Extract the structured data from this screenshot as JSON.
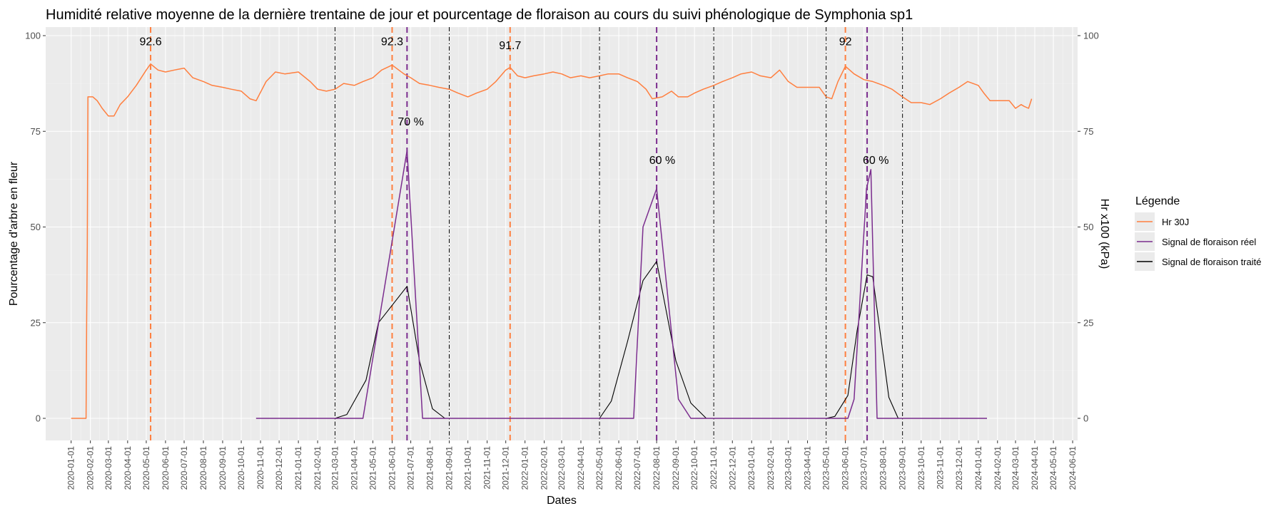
{
  "chart_data": {
    "type": "line",
    "title": "Humidité relative moyenne de la dernière trentaine de jour et pourcentage de floraison au cours du suivi phénologique de Symphonia sp1",
    "xlabel": "Dates",
    "ylabel_left": "Pourcentage d'arbre en fleur",
    "ylabel_right": "Hr x100 (kPa)",
    "ylim": [
      0,
      100
    ],
    "yticks": [
      0,
      25,
      50,
      75,
      100
    ],
    "x_range": [
      "2019-11-21",
      "2024-06-09"
    ],
    "x_ticks": [
      "2020-01-01",
      "2020-02-01",
      "2020-03-01",
      "2020-04-01",
      "2020-05-01",
      "2020-06-01",
      "2020-07-01",
      "2020-08-01",
      "2020-09-01",
      "2020-10-01",
      "2020-11-01",
      "2020-12-01",
      "2021-01-01",
      "2021-02-01",
      "2021-03-01",
      "2021-04-01",
      "2021-05-01",
      "2021-06-01",
      "2021-07-01",
      "2021-08-01",
      "2021-09-01",
      "2021-10-01",
      "2021-11-01",
      "2021-12-01",
      "2022-01-01",
      "2022-02-01",
      "2022-03-01",
      "2022-04-01",
      "2022-05-01",
      "2022-06-01",
      "2022-07-01",
      "2022-08-01",
      "2022-09-01",
      "2022-10-01",
      "2022-11-01",
      "2022-12-01",
      "2023-01-01",
      "2023-02-01",
      "2023-03-01",
      "2023-04-01",
      "2023-05-01",
      "2023-06-01",
      "2023-07-01",
      "2023-08-01",
      "2023-09-01",
      "2023-10-01",
      "2023-11-01",
      "2023-12-01",
      "2024-01-01",
      "2024-02-01",
      "2024-03-01",
      "2024-04-01",
      "2024-05-01",
      "2024-06-01"
    ],
    "legend": {
      "title": "Légende",
      "position": "right",
      "entries": [
        {
          "label": "Hr 30J",
          "color": "#ff7f3f"
        },
        {
          "label": "Signal de floraison réel",
          "color": "#7b2d8e"
        },
        {
          "label": "Signal de floraison traité",
          "color": "#000000"
        }
      ]
    },
    "series": [
      {
        "name": "Hr 30J",
        "color": "#ff7f3f",
        "points": [
          [
            "2020-01-01",
            0
          ],
          [
            "2020-01-25",
            0
          ],
          [
            "2020-01-26",
            25
          ],
          [
            "2020-01-27",
            45
          ],
          [
            "2020-01-28",
            84
          ],
          [
            "2020-02-05",
            84
          ],
          [
            "2020-02-12",
            83
          ],
          [
            "2020-02-20",
            81
          ],
          [
            "2020-03-01",
            79
          ],
          [
            "2020-03-10",
            79
          ],
          [
            "2020-03-20",
            82
          ],
          [
            "2020-04-01",
            84
          ],
          [
            "2020-04-15",
            87
          ],
          [
            "2020-05-01",
            91
          ],
          [
            "2020-05-08",
            92.6
          ],
          [
            "2020-05-20",
            91
          ],
          [
            "2020-06-01",
            90.5
          ],
          [
            "2020-06-15",
            91
          ],
          [
            "2020-07-01",
            91.5
          ],
          [
            "2020-07-15",
            89
          ],
          [
            "2020-08-01",
            88
          ],
          [
            "2020-08-15",
            87
          ],
          [
            "2020-09-01",
            86.5
          ],
          [
            "2020-09-15",
            86
          ],
          [
            "2020-10-01",
            85.5
          ],
          [
            "2020-10-15",
            83.5
          ],
          [
            "2020-10-25",
            83
          ],
          [
            "2020-11-10",
            88
          ],
          [
            "2020-11-25",
            90.5
          ],
          [
            "2020-12-10",
            90
          ],
          [
            "2021-01-01",
            90.5
          ],
          [
            "2021-01-20",
            88
          ],
          [
            "2021-02-01",
            86
          ],
          [
            "2021-02-15",
            85.5
          ],
          [
            "2021-03-01",
            86
          ],
          [
            "2021-03-15",
            87.5
          ],
          [
            "2021-04-01",
            87
          ],
          [
            "2021-04-15",
            88
          ],
          [
            "2021-05-01",
            89
          ],
          [
            "2021-05-15",
            91
          ],
          [
            "2021-06-01",
            92.3
          ],
          [
            "2021-06-20",
            90
          ],
          [
            "2021-07-01",
            89
          ],
          [
            "2021-07-15",
            87.5
          ],
          [
            "2021-08-01",
            87
          ],
          [
            "2021-08-15",
            86.5
          ],
          [
            "2021-09-01",
            86
          ],
          [
            "2021-09-15",
            85
          ],
          [
            "2021-10-01",
            84
          ],
          [
            "2021-10-15",
            85
          ],
          [
            "2021-11-01",
            86
          ],
          [
            "2021-11-15",
            88
          ],
          [
            "2021-12-01",
            91
          ],
          [
            "2021-12-08",
            91.7
          ],
          [
            "2021-12-20",
            89.5
          ],
          [
            "2022-01-01",
            89
          ],
          [
            "2022-01-15",
            89.5
          ],
          [
            "2022-02-01",
            90
          ],
          [
            "2022-02-15",
            90.5
          ],
          [
            "2022-03-01",
            90
          ],
          [
            "2022-03-15",
            89
          ],
          [
            "2022-04-01",
            89.5
          ],
          [
            "2022-04-15",
            89
          ],
          [
            "2022-05-01",
            89.5
          ],
          [
            "2022-05-15",
            90
          ],
          [
            "2022-06-01",
            90
          ],
          [
            "2022-06-15",
            89
          ],
          [
            "2022-07-01",
            88
          ],
          [
            "2022-07-15",
            86
          ],
          [
            "2022-07-25",
            83.5
          ],
          [
            "2022-08-10",
            84
          ],
          [
            "2022-08-25",
            85.5
          ],
          [
            "2022-09-05",
            84
          ],
          [
            "2022-09-20",
            84
          ],
          [
            "2022-10-01",
            85
          ],
          [
            "2022-10-15",
            86
          ],
          [
            "2022-11-01",
            87
          ],
          [
            "2022-11-15",
            88
          ],
          [
            "2022-12-01",
            89
          ],
          [
            "2022-12-15",
            90
          ],
          [
            "2023-01-01",
            90.5
          ],
          [
            "2023-01-15",
            89.5
          ],
          [
            "2023-02-01",
            89
          ],
          [
            "2023-02-15",
            91
          ],
          [
            "2023-03-01",
            88
          ],
          [
            "2023-03-15",
            86.5
          ],
          [
            "2023-04-01",
            86.5
          ],
          [
            "2023-04-20",
            86.5
          ],
          [
            "2023-05-01",
            84
          ],
          [
            "2023-05-10",
            83.5
          ],
          [
            "2023-05-20",
            88
          ],
          [
            "2023-06-01",
            92
          ],
          [
            "2023-06-15",
            90
          ],
          [
            "2023-07-01",
            88.5
          ],
          [
            "2023-07-15",
            88
          ],
          [
            "2023-08-01",
            87
          ],
          [
            "2023-08-15",
            86
          ],
          [
            "2023-09-01",
            84
          ],
          [
            "2023-09-15",
            82.5
          ],
          [
            "2023-10-01",
            82.5
          ],
          [
            "2023-10-15",
            82
          ],
          [
            "2023-11-01",
            83.5
          ],
          [
            "2023-11-15",
            85
          ],
          [
            "2023-12-01",
            86.5
          ],
          [
            "2023-12-15",
            88
          ],
          [
            "2024-01-01",
            87
          ],
          [
            "2024-01-10",
            85
          ],
          [
            "2024-01-20",
            83
          ],
          [
            "2024-02-01",
            83
          ],
          [
            "2024-02-20",
            83
          ],
          [
            "2024-03-01",
            81
          ],
          [
            "2024-03-10",
            82
          ],
          [
            "2024-03-15",
            81.5
          ],
          [
            "2024-03-22",
            81
          ],
          [
            "2024-03-27",
            83.5
          ]
        ]
      },
      {
        "name": "Signal de floraison réel",
        "color": "#7b2d8e",
        "points": [
          [
            "2020-10-25",
            0
          ],
          [
            "2021-04-15",
            0
          ],
          [
            "2021-06-25",
            70
          ],
          [
            "2021-07-20",
            0
          ],
          [
            "2022-05-01",
            0
          ],
          [
            "2022-06-25",
            0
          ],
          [
            "2022-07-10",
            50
          ],
          [
            "2022-08-01",
            60
          ],
          [
            "2022-09-05",
            5
          ],
          [
            "2022-09-25",
            0
          ],
          [
            "2023-05-15",
            0
          ],
          [
            "2023-06-05",
            0
          ],
          [
            "2023-06-15",
            5
          ],
          [
            "2023-07-05",
            60
          ],
          [
            "2023-07-12",
            65
          ],
          [
            "2023-07-22",
            0
          ],
          [
            "2024-01-15",
            0
          ]
        ]
      },
      {
        "name": "Signal de floraison traité",
        "color": "#000000",
        "points": [
          [
            "2020-10-25",
            0
          ],
          [
            "2021-03-01",
            0
          ],
          [
            "2021-03-20",
            1
          ],
          [
            "2021-04-20",
            10
          ],
          [
            "2021-05-10",
            25
          ],
          [
            "2021-06-25",
            34.5
          ],
          [
            "2021-07-15",
            15
          ],
          [
            "2021-08-05",
            2.5
          ],
          [
            "2021-08-25",
            0
          ],
          [
            "2022-05-01",
            0
          ],
          [
            "2022-05-20",
            4.5
          ],
          [
            "2022-06-15",
            20
          ],
          [
            "2022-07-10",
            36
          ],
          [
            "2022-08-01",
            41
          ],
          [
            "2022-09-01",
            15
          ],
          [
            "2022-09-25",
            4
          ],
          [
            "2022-10-20",
            0
          ],
          [
            "2023-05-01",
            0
          ],
          [
            "2023-05-15",
            0.5
          ],
          [
            "2023-06-05",
            6
          ],
          [
            "2023-06-20",
            23
          ],
          [
            "2023-07-06",
            37.5
          ],
          [
            "2023-07-15",
            37
          ],
          [
            "2023-08-10",
            5.5
          ],
          [
            "2023-08-25",
            0
          ],
          [
            "2024-01-15",
            0
          ]
        ]
      }
    ],
    "vlines_orange_dashed": [
      "2020-05-08",
      "2021-06-01",
      "2021-12-08",
      "2023-06-01"
    ],
    "vlines_purple_dashed": [
      "2021-06-25",
      "2022-08-01",
      "2023-07-06"
    ],
    "vlines_black_dotdash": [
      "2021-03-01",
      "2021-09-01",
      "2022-05-01",
      "2022-11-01",
      "2023-05-01",
      "2023-09-01"
    ],
    "annotations": [
      {
        "text": "92.6",
        "x": "2020-05-08",
        "y": 97.5
      },
      {
        "text": "92.3",
        "x": "2021-06-01",
        "y": 97.5
      },
      {
        "text": "91.7",
        "x": "2021-12-08",
        "y": 96.5
      },
      {
        "text": "92",
        "x": "2023-06-01",
        "y": 97.5
      },
      {
        "text": "70 %",
        "x": "2021-07-01",
        "y": 76.5
      },
      {
        "text": "60 %",
        "x": "2022-08-10",
        "y": 66.5
      },
      {
        "text": "60 %",
        "x": "2023-07-20",
        "y": 66.5
      }
    ]
  }
}
